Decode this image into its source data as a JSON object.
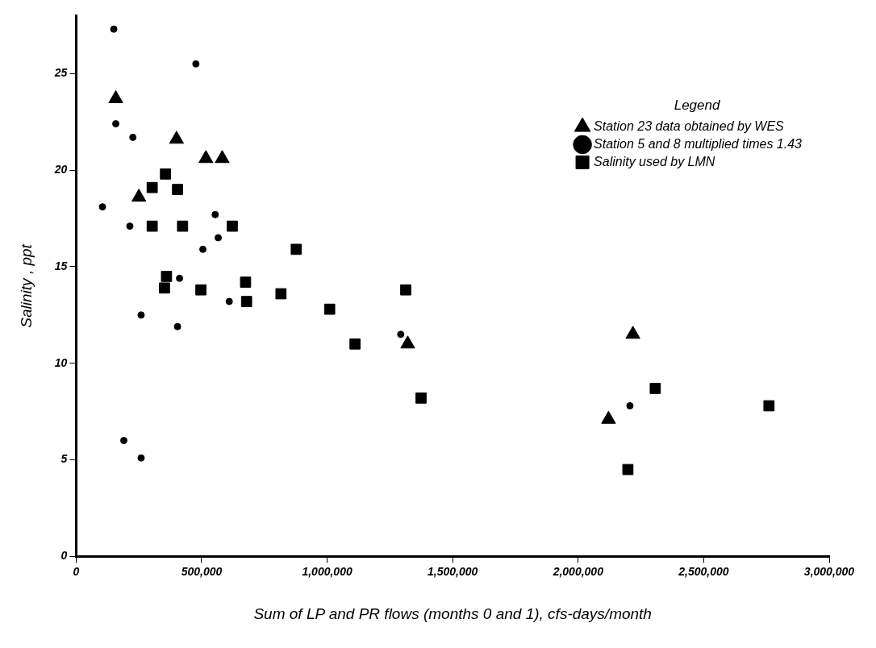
{
  "chart_data": {
    "type": "scatter",
    "xlabel": "Sum of LP and PR flows (months 0 and 1), cfs-days/month",
    "ylabel": "Salinity , ppt",
    "legend_title": "Legend",
    "legend": "top right",
    "grid": false,
    "xlim": [
      0,
      3000000
    ],
    "xticks": [
      0,
      {
        "value": 500000,
        "label": "500,000"
      },
      {
        "value": 1000000,
        "label": "1,000,000"
      },
      {
        "value": 1500000,
        "label": "1,500,000"
      },
      {
        "value": 2000000,
        "label": "2,000,000"
      },
      {
        "value": 2500000,
        "label": "2,500,000"
      },
      {
        "value": 3000000,
        "label": "3,000,000"
      }
    ],
    "ylim": [
      0,
      28
    ],
    "yticks": [
      0,
      5,
      10,
      15,
      20,
      25
    ],
    "series": [
      {
        "name": "Station 23 data obtained by WES",
        "color": "#000000",
        "marker": "triangle",
        "x": [
          158000,
          400000,
          517000,
          582000,
          250000,
          1321000,
          2218000,
          2121000
        ],
        "values": [
          23.7,
          21.6,
          20.6,
          20.6,
          18.6,
          11.0,
          11.5,
          7.1
        ]
      },
      {
        "name": "Station 5 and 8 multiplied times 1.43",
        "color": "#000000",
        "marker": "circle",
        "x": [
          150000,
          477000,
          158000,
          226000,
          105000,
          214000,
          554000,
          566000,
          505000,
          412000,
          610000,
          259000,
          404000,
          1293000,
          190000,
          259000,
          2206000
        ],
        "values": [
          27.3,
          25.5,
          22.4,
          21.7,
          18.1,
          17.1,
          17.7,
          16.5,
          15.9,
          14.4,
          13.2,
          12.5,
          11.9,
          11.5,
          6.0,
          5.1,
          7.8
        ]
      },
      {
        "name": "Salinity used by LMN",
        "color": "#000000",
        "marker": "square",
        "x": [
          356000,
          303000,
          404000,
          303000,
          424000,
          622000,
          877000,
          360000,
          352000,
          497000,
          675000,
          679000,
          816000,
          1010000,
          1111000,
          1313000,
          1374000,
          2307000,
          2198000,
          2760000
        ],
        "values": [
          19.8,
          19.1,
          19.0,
          17.1,
          17.1,
          17.1,
          15.9,
          14.5,
          13.9,
          13.8,
          14.2,
          13.2,
          13.6,
          12.8,
          11.0,
          13.8,
          8.2,
          8.7,
          4.5,
          7.8
        ]
      }
    ]
  }
}
